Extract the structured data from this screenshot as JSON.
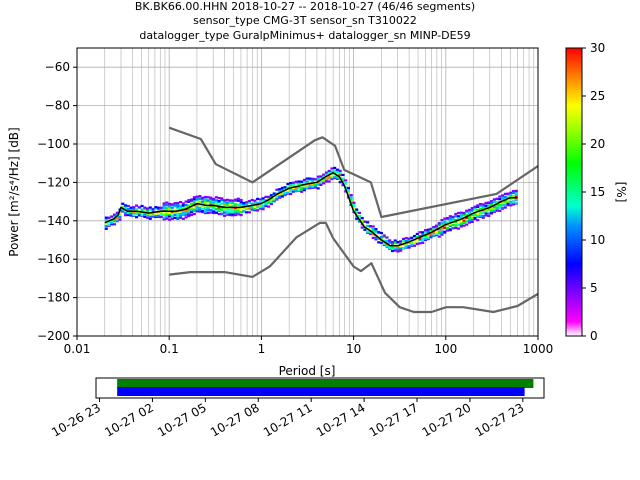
{
  "title": {
    "line1": "BK.BK66.00.HHN   2018-10-27 -- 2018-10-27  (46/46 segments)",
    "line2": "sensor_type CMG-3T sensor_sn T310022",
    "line3": "datalogger_type GuralpMinimus+ datalogger_sn MINP-DE59"
  },
  "colors": {
    "mode_line": "#000000",
    "noise_model": "#666666",
    "grid": "#b0b0b0",
    "coverage_green": "#008000",
    "coverage_blue": "#0000ff"
  },
  "chart_data": [
    {
      "type": "line",
      "xlabel": "Period [s]",
      "ylabel": "Power [m²/s⁴/Hz] [dB]",
      "xscale": "log",
      "xlim": [
        0.01,
        1000
      ],
      "ylim": [
        -200,
        -50
      ],
      "grid": true,
      "x_ticks": [
        {
          "value": 0.01,
          "label": "0.01"
        },
        {
          "value": 0.1,
          "label": "0.1"
        },
        {
          "value": 1,
          "label": "1"
        },
        {
          "value": 10,
          "label": "10"
        },
        {
          "value": 100,
          "label": "100"
        },
        {
          "value": 1000,
          "label": "1000"
        }
      ],
      "y_ticks": [
        {
          "value": -60,
          "label": "−60"
        },
        {
          "value": -80,
          "label": "−80"
        },
        {
          "value": -100,
          "label": "−100"
        },
        {
          "value": -120,
          "label": "−120"
        },
        {
          "value": -140,
          "label": "−140"
        },
        {
          "value": -160,
          "label": "−160"
        },
        {
          "value": -180,
          "label": "−180"
        },
        {
          "value": -200,
          "label": "−200"
        }
      ],
      "series": [
        {
          "kind": "mode",
          "x": [
            0.02,
            0.025,
            0.028,
            0.03,
            0.035,
            0.045,
            0.06,
            0.08,
            0.1,
            0.12,
            0.15,
            0.2,
            0.25,
            0.3,
            0.4,
            0.6,
            0.8,
            1.0,
            1.2,
            1.5,
            2.0,
            2.5,
            3.0,
            4.0,
            5.0,
            6.0,
            7.0,
            8.0,
            10.0,
            13.0,
            16.0,
            20.0,
            25.0,
            30.0,
            40.0,
            50.0,
            70.0,
            100.0,
            150.0,
            200.0,
            300.0,
            400.0,
            500.0,
            600.0
          ],
          "y": [
            -141,
            -139,
            -137,
            -133,
            -135,
            -135,
            -136,
            -135,
            -135,
            -135,
            -134,
            -131,
            -132,
            -132,
            -133,
            -133,
            -132,
            -131,
            -129,
            -126,
            -123,
            -122,
            -121,
            -120,
            -117,
            -115,
            -117,
            -122,
            -135,
            -143,
            -146,
            -150,
            -153,
            -153,
            -151,
            -149,
            -146,
            -142,
            -139,
            -136,
            -133,
            -130,
            -128,
            -128
          ]
        },
        {
          "kind": "noise_model_high",
          "x": [
            0.1,
            0.22,
            0.32,
            0.8,
            3.8,
            4.6,
            6.3,
            7.9,
            15.4,
            20,
            354.8,
            1000
          ],
          "y": [
            -91.5,
            -97.4,
            -110.5,
            -120,
            -98,
            -96.5,
            -101,
            -113.5,
            -120,
            -138,
            -126,
            -111.5
          ]
        },
        {
          "kind": "noise_model_low",
          "x": [
            0.1,
            0.17,
            0.4,
            0.8,
            1.24,
            2.4,
            4.3,
            5.0,
            6.0,
            10.0,
            12.0,
            15.6,
            21.9,
            31.6,
            45.0,
            70.0,
            101.0,
            154.0,
            328.0,
            600.0,
            1000.0
          ],
          "y": [
            -168,
            -166.7,
            -166.7,
            -169.2,
            -163.7,
            -148.6,
            -141.1,
            -141.1,
            -149,
            -163.8,
            -166.2,
            -162.1,
            -177.5,
            -185,
            -187.5,
            -187.5,
            -185,
            -185,
            -187.5,
            -184.4,
            -178
          ]
        }
      ]
    },
    {
      "type": "colorbar",
      "label": "[%]",
      "range": [
        0,
        30
      ],
      "ticks": [
        {
          "value": 0,
          "label": "0"
        },
        {
          "value": 5,
          "label": "5"
        },
        {
          "value": 10,
          "label": "10"
        },
        {
          "value": 15,
          "label": "15"
        },
        {
          "value": 20,
          "label": "20"
        },
        {
          "value": 25,
          "label": "25"
        },
        {
          "value": 30,
          "label": "30"
        }
      ]
    },
    {
      "type": "timeline",
      "ticks": [
        {
          "hour": 23,
          "label": "10-26 23"
        },
        {
          "hour": 26,
          "label": "10-27 02"
        },
        {
          "hour": 29,
          "label": "10-27 05"
        },
        {
          "hour": 32,
          "label": "10-27 08"
        },
        {
          "hour": 35,
          "label": "10-27 11"
        },
        {
          "hour": 38,
          "label": "10-27 14"
        },
        {
          "hour": 41,
          "label": "10-27 17"
        },
        {
          "hour": 44,
          "label": "10-27 20"
        },
        {
          "hour": 47,
          "label": "10-27 23"
        }
      ],
      "range_hours": [
        22.8,
        48.2
      ],
      "bars": [
        {
          "name": "data",
          "start": 24,
          "end": 47.6
        },
        {
          "name": "psd",
          "start": 24,
          "end": 47.1
        }
      ]
    }
  ]
}
